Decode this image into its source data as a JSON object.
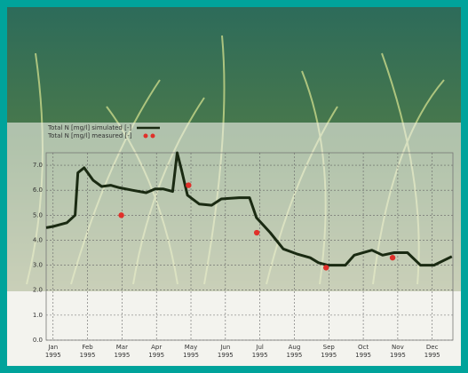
{
  "chart_data": {
    "type": "line",
    "legend": [
      "Total N [mg/l] simulated [-]",
      "Total N [mg/l] measured [-]"
    ],
    "xlim": [
      -0.2,
      11.6
    ],
    "xticks": [
      {
        "value": 0,
        "label": "Jan 1995"
      },
      {
        "value": 1,
        "label": "Feb 1995"
      },
      {
        "value": 2,
        "label": "Mar 1995"
      },
      {
        "value": 3,
        "label": "Apr 1995"
      },
      {
        "value": 4,
        "label": "May 1995"
      },
      {
        "value": 5,
        "label": "Jun 1995"
      },
      {
        "value": 6,
        "label": "Jul 1995"
      },
      {
        "value": 7,
        "label": "Aug 1995"
      },
      {
        "value": 8,
        "label": "Sep 1995"
      },
      {
        "value": 9,
        "label": "Oct 1995"
      },
      {
        "value": 10,
        "label": "Nov 1995"
      },
      {
        "value": 11,
        "label": "Dec 1995"
      }
    ],
    "ylim": [
      0,
      7.5
    ],
    "yticks": [
      {
        "value": 0,
        "label": "0.0"
      },
      {
        "value": 1,
        "label": "1.0"
      },
      {
        "value": 2,
        "label": "2.0"
      },
      {
        "value": 3,
        "label": "3.0"
      },
      {
        "value": 4,
        "label": "4.0"
      },
      {
        "value": 5,
        "label": "5.0"
      },
      {
        "value": 6,
        "label": "6.0"
      },
      {
        "value": 7,
        "label": "7.0"
      }
    ],
    "grid": true,
    "series": [
      {
        "name": "Total N [mg/l] simulated [-]",
        "kind": "line",
        "color": "#1a2a12",
        "x": [
          -0.2,
          0,
          0.4,
          0.64,
          0.72,
          0.9,
          1.16,
          1.41,
          1.67,
          1.93,
          2.3,
          2.7,
          2.96,
          3.2,
          3.47,
          3.6,
          3.73,
          3.9,
          4.24,
          4.6,
          4.88,
          5.4,
          5.7,
          5.9,
          6.3,
          6.68,
          7.07,
          7.46,
          7.7,
          7.97,
          8.48,
          8.74,
          9.25,
          9.56,
          9.9,
          10.28,
          10.66,
          11.05,
          11.57
        ],
        "values": [
          4.5,
          4.55,
          4.7,
          5.0,
          6.7,
          6.9,
          6.4,
          6.15,
          6.2,
          6.1,
          6.0,
          5.9,
          6.05,
          6.05,
          5.95,
          7.5,
          6.8,
          5.8,
          5.45,
          5.4,
          5.65,
          5.7,
          5.7,
          4.9,
          4.3,
          3.65,
          3.45,
          3.3,
          3.1,
          3.0,
          3.0,
          3.4,
          3.6,
          3.4,
          3.5,
          3.5,
          3.0,
          3.0,
          3.35
        ]
      },
      {
        "name": "Total N [mg/l] measured [-]",
        "kind": "points",
        "color": "#e0302a",
        "x": [
          1.98,
          3.93,
          5.91,
          7.92,
          9.85
        ],
        "values": [
          5.0,
          6.2,
          4.3,
          2.9,
          3.3
        ]
      }
    ]
  }
}
